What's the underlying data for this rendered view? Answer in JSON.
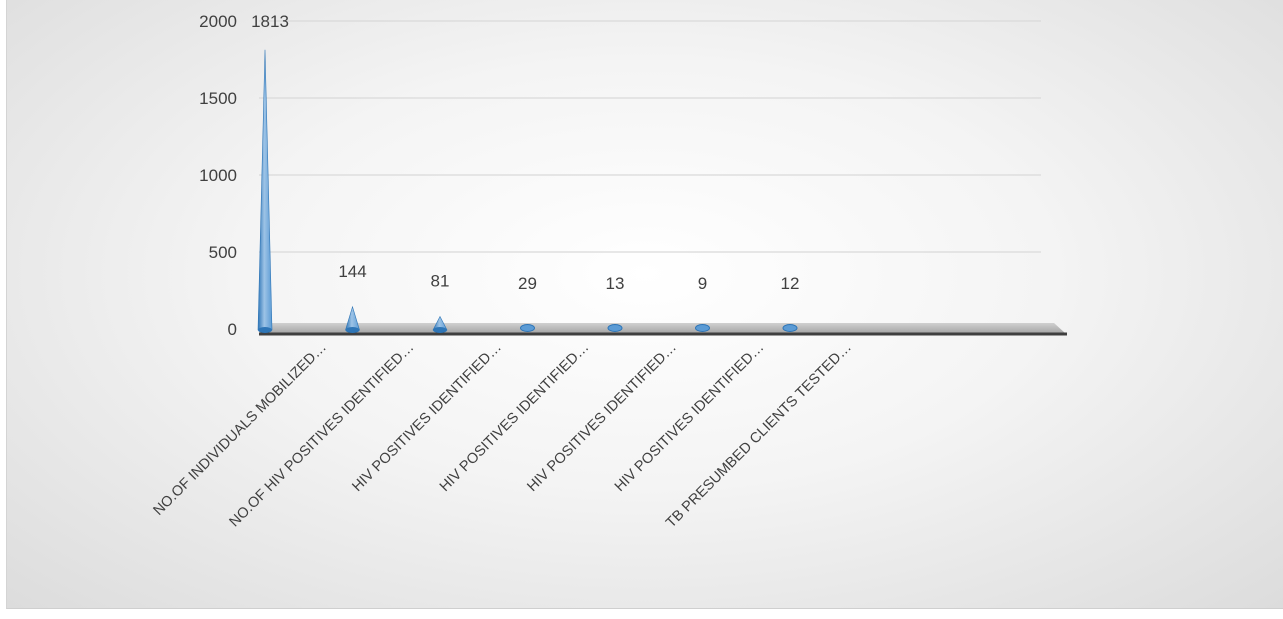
{
  "chart_data": {
    "type": "bar",
    "bar_shape": "cone",
    "categories": [
      "NO.OF INDIVIDUALS  MOBILIZED…",
      "NO.OF HIV POSITIVES IDENTIFIED…",
      "HIV POSITIVES IDENTIFIED…",
      "HIV POSITIVES IDENTIFIED…",
      "HIV POSITIVES IDENTIFIED…",
      "HIV POSITIVES IDENTIFIED…",
      "TB PRESUMBED CLIENTS TESTED…"
    ],
    "values": [
      1813,
      144,
      81,
      29,
      13,
      9,
      12
    ],
    "data_labels": [
      "1813",
      "144",
      "81",
      "29",
      "13",
      "9",
      "12"
    ],
    "yticks": [
      "0",
      "500",
      "1000",
      "1500",
      "2000"
    ],
    "ylim": [
      0,
      2000
    ],
    "grid": true,
    "legend": "none",
    "colors": {
      "bar": "#5b9bd5",
      "bar_light": "#9dc3e6",
      "bar_dark": "#2e75b6",
      "grid": "#d9d9d9",
      "floor": "#7f7f7f"
    }
  }
}
